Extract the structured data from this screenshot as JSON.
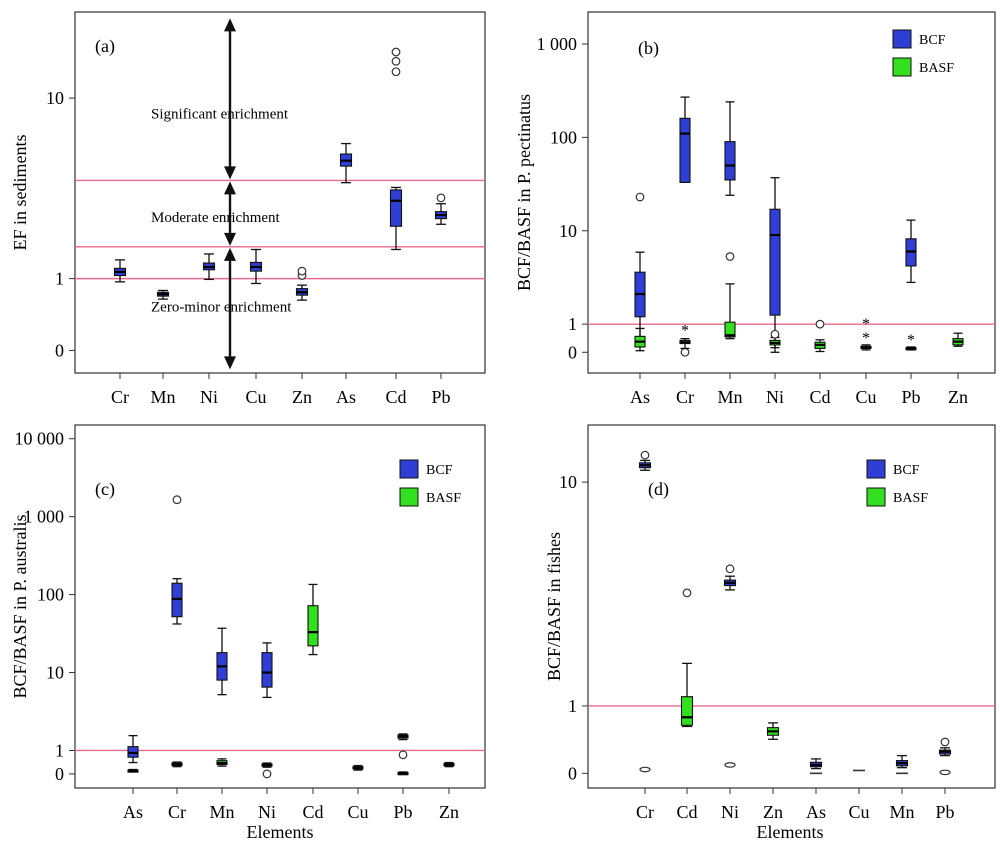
{
  "chart_data": [
    {
      "type": "box",
      "panel_label": "(a)",
      "ylabel": "EF in sediments",
      "xlabel": "",
      "scale": "log",
      "yticks": [
        {
          "label": "0",
          "value": 0.4
        },
        {
          "label": "1",
          "value": 1
        },
        {
          "label": "10",
          "value": 10
        }
      ],
      "ylim": [
        0.3,
        30
      ],
      "categories": [
        "Cr",
        "Mn",
        "Ni",
        "Cu",
        "Zn",
        "As",
        "Cd",
        "Pb"
      ],
      "hlines": [
        1,
        1.5,
        3.5
      ],
      "annotations": [
        {
          "text": "Significant enrichment",
          "x": 2.3,
          "y": 8.2
        },
        {
          "text": "Moderate enrichment",
          "x": 2.3,
          "y": 2.2
        },
        {
          "text": "Zero-minor enrichment",
          "x": 2.3,
          "y": 0.7
        }
      ],
      "arrows": [
        {
          "x": 2.35,
          "y1": 3.5,
          "y2": 28
        },
        {
          "x": 2.35,
          "y1": 1.5,
          "y2": 3.5
        },
        {
          "x": 2.35,
          "y1": 0.31,
          "y2": 1.5
        }
      ],
      "grid": false,
      "series": [
        {
          "color": "#2f3fd6",
          "boxes": [
            {
              "cat": 0,
              "min": 0.96,
              "q1": 1.04,
              "med": 1.09,
              "q3": 1.14,
              "max": 1.27
            },
            {
              "cat": 1,
              "min": 0.77,
              "q1": 0.8,
              "med": 0.82,
              "q3": 0.84,
              "max": 0.86
            },
            {
              "cat": 2,
              "min": 0.99,
              "q1": 1.12,
              "med": 1.16,
              "q3": 1.22,
              "max": 1.37
            },
            {
              "cat": 3,
              "min": 0.94,
              "q1": 1.1,
              "med": 1.16,
              "q3": 1.23,
              "max": 1.45
            },
            {
              "cat": 4,
              "min": 0.76,
              "q1": 0.81,
              "med": 0.84,
              "q3": 0.88,
              "max": 0.92,
              "outliers": [
                1.04,
                1.1
              ]
            },
            {
              "cat": 5,
              "min": 3.4,
              "q1": 4.2,
              "med": 4.5,
              "q3": 4.9,
              "max": 5.6
            },
            {
              "cat": 6,
              "min": 1.45,
              "q1": 1.95,
              "med": 2.7,
              "q3": 3.1,
              "max": 3.2,
              "outliers": [
                14,
                16,
                18
              ]
            },
            {
              "cat": 7,
              "min": 2,
              "q1": 2.15,
              "med": 2.25,
              "q3": 2.35,
              "max": 2.6,
              "outliers": [
                2.8
              ]
            }
          ]
        }
      ]
    },
    {
      "type": "box",
      "panel_label": "(b)",
      "ylabel": "BCF/BASF in P. pectinatus",
      "xlabel": "",
      "scale": "log",
      "yticks": [
        {
          "label": "0",
          "value": 0.5
        },
        {
          "label": "1",
          "value": 1
        },
        {
          "label": "10",
          "value": 10
        },
        {
          "label": "100",
          "value": 100
        },
        {
          "label": "1 000",
          "value": 1000
        }
      ],
      "ylim": [
        0.3,
        2200
      ],
      "categories": [
        "As",
        "Cr",
        "Mn",
        "Ni",
        "Cd",
        "Cu",
        "Pb",
        "Zn"
      ],
      "hlines": [
        1
      ],
      "grid": false,
      "legend": {
        "position": "top-right"
      },
      "series": [
        {
          "name": "BCF",
          "color": "#2f3fd6",
          "boxes": [
            {
              "cat": 0,
              "min": 0.71,
              "q1": 1.2,
              "med": 2.1,
              "q3": 3.6,
              "max": 5.9,
              "outliers": [
                23
              ]
            },
            {
              "cat": 1,
              "min": 33,
              "q1": 33,
              "med": 110,
              "q3": 160,
              "max": 270,
              "outliers": [
                0.5
              ]
            },
            {
              "cat": 2,
              "min": 24,
              "q1": 35,
              "med": 50,
              "q3": 90,
              "max": 240,
              "outliers": [
                5.3
              ]
            },
            {
              "cat": 3,
              "min": 0.5,
              "q1": 1.25,
              "med": 9,
              "q3": 17,
              "max": 37
            },
            {
              "cat": 6,
              "min": 2.8,
              "q1": 4.2,
              "med": 6,
              "q3": 8.2,
              "max": 13
            }
          ]
        },
        {
          "name": "BASF",
          "color": "#33e020",
          "boxes": [
            {
              "cat": 0,
              "min": 0.52,
              "q1": 0.57,
              "med": 0.65,
              "q3": 0.74,
              "max": 0.9
            },
            {
              "cat": 1,
              "min": 0.55,
              "q1": 0.62,
              "med": 0.64,
              "q3": 0.67,
              "max": 0.7,
              "stars": [
                0.88
              ]
            },
            {
              "cat": 2,
              "min": 0.7,
              "q1": 0.73,
              "med": 0.76,
              "q3": 1.05,
              "max": 2.7
            },
            {
              "cat": 3,
              "min": 0.56,
              "q1": 0.6,
              "med": 0.63,
              "q3": 0.67,
              "max": 0.72,
              "outliers": [
                0.78
              ]
            },
            {
              "cat": 4,
              "min": 0.51,
              "q1": 0.55,
              "med": 0.6,
              "q3": 0.64,
              "max": 0.68,
              "outliers": [
                1
              ]
            },
            {
              "cat": 5,
              "min": 0.53,
              "q1": 0.55,
              "med": 0.56,
              "q3": 0.58,
              "max": 0.6,
              "stars": [
                1.03,
                0.73
              ]
            },
            {
              "cat": 6,
              "min": 0.53,
              "q1": 0.54,
              "med": 0.55,
              "q3": 0.56,
              "max": 0.57,
              "stars": [
                0.69
              ]
            },
            {
              "cat": 7,
              "min": 0.58,
              "q1": 0.6,
              "med": 0.65,
              "q3": 0.7,
              "max": 0.8
            }
          ]
        }
      ]
    },
    {
      "type": "box",
      "panel_label": "(c)",
      "ylabel": "BCF/BASF in P. australis",
      "xlabel": "Elements",
      "scale": "log",
      "yticks": [
        {
          "label": "0",
          "value": 0.5
        },
        {
          "label": "1",
          "value": 1
        },
        {
          "label": "10",
          "value": 10
        },
        {
          "label": "100",
          "value": 100
        },
        {
          "label": "1 000",
          "value": 1000
        },
        {
          "label": "10 000",
          "value": 10000
        }
      ],
      "ylim": [
        0.33,
        15000
      ],
      "categories": [
        "As",
        "Cr",
        "Mn",
        "Ni",
        "Cd",
        "Cu",
        "Pb",
        "Zn"
      ],
      "hlines": [
        1
      ],
      "grid": false,
      "legend": {
        "position": "top-right"
      },
      "series": [
        {
          "name": "BCF",
          "color": "#2f3fd6",
          "boxes": [
            {
              "cat": 0,
              "min": 0.7,
              "q1": 0.82,
              "med": 0.93,
              "q3": 1.12,
              "max": 1.55
            },
            {
              "cat": 1,
              "min": 42,
              "q1": 52,
              "med": 88,
              "q3": 140,
              "max": 160,
              "outliers": [
                1650
              ]
            },
            {
              "cat": 2,
              "min": 5.2,
              "q1": 8,
              "med": 12,
              "q3": 18,
              "max": 37
            },
            {
              "cat": 3,
              "min": 4.8,
              "q1": 6.5,
              "med": 10,
              "q3": 18,
              "max": 24,
              "outliers": [
                0.5
              ]
            },
            {
              "cat": 6,
              "min": 1.38,
              "q1": 1.44,
              "med": 1.52,
              "q3": 1.58,
              "max": 1.63
            }
          ]
        },
        {
          "name": "BASF",
          "color": "#33e020",
          "boxes": [
            {
              "cat": 0,
              "min": 0.53,
              "q1": 0.54,
              "med": 0.55,
              "q3": 0.56,
              "max": 0.57
            },
            {
              "cat": 1,
              "min": 0.62,
              "q1": 0.64,
              "med": 0.66,
              "q3": 0.69,
              "max": 0.71
            },
            {
              "cat": 2,
              "min": 0.63,
              "q1": 0.66,
              "med": 0.69,
              "q3": 0.74,
              "max": 0.78
            },
            {
              "cat": 3,
              "min": 0.61,
              "q1": 0.63,
              "med": 0.65,
              "q3": 0.67,
              "max": 0.69
            },
            {
              "cat": 4,
              "min": 17,
              "q1": 22,
              "med": 33,
              "q3": 72,
              "max": 135
            },
            {
              "cat": 5,
              "min": 0.56,
              "q1": 0.58,
              "med": 0.6,
              "q3": 0.62,
              "max": 0.64
            },
            {
              "cat": 6,
              "min": 0.49,
              "q1": 0.5,
              "med": 0.51,
              "q3": 0.52,
              "max": 0.53,
              "outliers": [
                0.88
              ]
            },
            {
              "cat": 7,
              "min": 0.62,
              "q1": 0.64,
              "med": 0.66,
              "q3": 0.68,
              "max": 0.7
            }
          ]
        }
      ]
    },
    {
      "type": "box",
      "panel_label": "(d)",
      "ylabel": "BCF/BASF in fishes",
      "xlabel": "Elements",
      "scale": "log",
      "yticks": [
        {
          "label": "0",
          "value": 0.5
        },
        {
          "label": "1",
          "value": 1
        },
        {
          "label": "10",
          "value": 10
        }
      ],
      "ylim": [
        0.43,
        18
      ],
      "categories": [
        "Cr",
        "Cd",
        "Ni",
        "Zn",
        "As",
        "Cu",
        "Mn",
        "Pb"
      ],
      "hlines": [
        1
      ],
      "grid": false,
      "legend": {
        "position": "top-right"
      },
      "series": [
        {
          "name": "BCF",
          "color": "#2f3fd6",
          "boxes": [
            {
              "cat": 0,
              "min": 11.3,
              "q1": 11.6,
              "med": 11.9,
              "q3": 12.2,
              "max": 12.5,
              "outliers": [
                13.2
              ]
            },
            {
              "cat": 2,
              "min": 3.3,
              "q1": 3.45,
              "med": 3.55,
              "q3": 3.65,
              "max": 3.8,
              "outliers": [
                4.1
              ]
            },
            {
              "cat": 4,
              "min": 0.525,
              "q1": 0.535,
              "med": 0.545,
              "q3": 0.56,
              "max": 0.58
            },
            {
              "cat": 6,
              "min": 0.53,
              "q1": 0.54,
              "med": 0.555,
              "q3": 0.57,
              "max": 0.6
            },
            {
              "cat": 7,
              "min": 0.6,
              "q1": 0.61,
              "med": 0.625,
              "q3": 0.635,
              "max": 0.65,
              "outliers": [
                0.69
              ]
            }
          ]
        },
        {
          "name": "BASF",
          "color": "#33e020",
          "boxes": [
            {
              "cat": 1,
              "min": 0.81,
              "q1": 0.82,
              "med": 0.89,
              "q3": 1.1,
              "max": 1.55,
              "outliers": [
                3.2
              ]
            },
            {
              "cat": 3,
              "min": 0.71,
              "q1": 0.74,
              "med": 0.77,
              "q3": 0.8,
              "max": 0.84
            }
          ]
        }
      ],
      "minor_marks": [
        {
          "cat": 0,
          "value": 0.52,
          "shape": "ellipse"
        },
        {
          "cat": 2,
          "value": 0.545,
          "shape": "ellipse"
        },
        {
          "cat": 4,
          "value": 0.5,
          "shape": "dash"
        },
        {
          "cat": 5,
          "value": 0.515,
          "shape": "dash"
        },
        {
          "cat": 6,
          "value": 0.5,
          "shape": "dash"
        },
        {
          "cat": 7,
          "value": 0.505,
          "shape": "ellipse"
        }
      ]
    }
  ]
}
